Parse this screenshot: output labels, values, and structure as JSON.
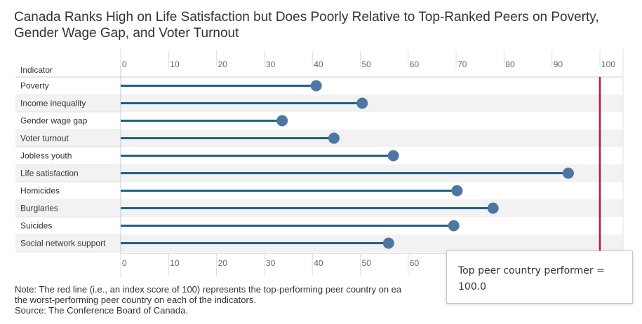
{
  "chart_data": {
    "type": "lollipop",
    "title": "Canada Ranks High on Life Satisfaction but Does Poorly Relative to Top-Ranked Peers on Poverty, Gender Wage Gap, and Voter Turnout",
    "category_header": "Indicator",
    "categories": [
      "Poverty",
      "Income inequality",
      "Gender wage gap",
      "Voter turnout",
      "Jobless youth",
      "Life satisfaction",
      "Homicides",
      "Burglaries",
      "Suicides",
      "Social network support"
    ],
    "values": [
      40.8,
      50.4,
      33.7,
      44.5,
      56.9,
      93.4,
      70.2,
      77.7,
      69.5,
      55.9
    ],
    "xlim": [
      0,
      105
    ],
    "xticks": [
      "0",
      "10",
      "20",
      "30",
      "40",
      "50",
      "60",
      "70",
      "80",
      "90",
      "100"
    ],
    "xticks_bottom": [
      "0",
      "10",
      "20",
      "30",
      "40",
      "50",
      "60"
    ],
    "reference_line": {
      "value": 100,
      "color": "#c0143c"
    },
    "colors": {
      "stem": "#1f5f84",
      "dot": "#4e76a3",
      "band": "#f2f2f2"
    },
    "grid": false
  },
  "note": {
    "line1": "Note: The red line (i.e., an index score of 100) represents the top-performing peer country on ea",
    "line2": "the worst-performing peer country on each of the indicators.",
    "line3": "Source: The Conference Board of Canada."
  },
  "tooltip": {
    "label": "Top peer country performer =",
    "value": "100.0"
  }
}
